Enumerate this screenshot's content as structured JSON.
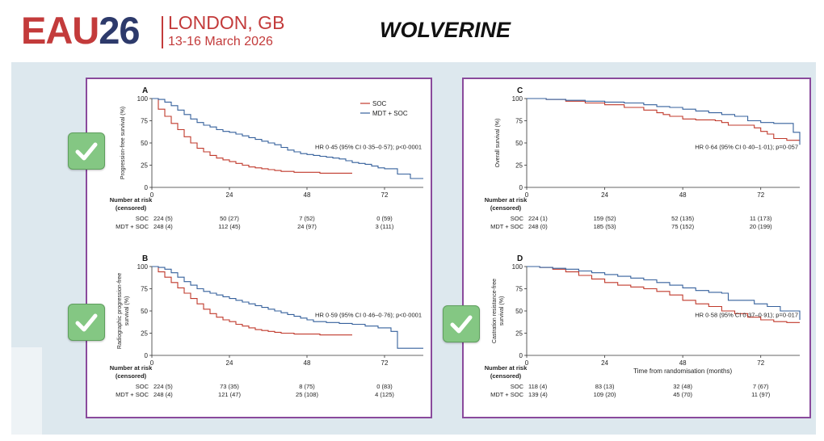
{
  "header": {
    "logo_eau": "EAU",
    "logo_year": "26",
    "city": "LONDON, GB",
    "dates": "13-16 March 2026",
    "title": "WOLVERINE"
  },
  "colors": {
    "soc": "#c0392b",
    "mdt": "#35609c",
    "accent": "#c33b3b",
    "panel_border": "#8a4a9c",
    "check": "#84c783"
  },
  "chart_data": [
    {
      "id": "A",
      "type": "line",
      "panel_label": "A",
      "ylabel": "Progression-free survival (%)",
      "yticks": [
        0,
        25,
        50,
        75,
        100
      ],
      "xticks": [
        0,
        24,
        48,
        72
      ],
      "xlim": [
        0,
        84
      ],
      "ylim": [
        0,
        100
      ],
      "xlabel": "",
      "legend": [
        "SOC",
        "MDT + SOC"
      ],
      "annotation": "HR 0·45 (95% CI 0·35–0·57); p<0·0001",
      "series": [
        {
          "name": "SOC",
          "x": [
            0,
            2,
            4,
            6,
            8,
            10,
            12,
            14,
            16,
            18,
            20,
            22,
            24,
            26,
            28,
            30,
            32,
            34,
            36,
            38,
            40,
            44,
            48,
            52,
            56,
            60,
            62
          ],
          "values": [
            100,
            88,
            80,
            72,
            65,
            57,
            50,
            44,
            40,
            36,
            33,
            31,
            29,
            27,
            25,
            23,
            22,
            21,
            20,
            19,
            18,
            17,
            17,
            16,
            16,
            16,
            16
          ]
        },
        {
          "name": "MDT + SOC",
          "x": [
            0,
            2,
            4,
            6,
            8,
            10,
            12,
            14,
            16,
            18,
            20,
            22,
            24,
            26,
            28,
            30,
            32,
            34,
            36,
            38,
            40,
            42,
            44,
            46,
            48,
            50,
            52,
            54,
            56,
            58,
            60,
            62,
            64,
            66,
            68,
            70,
            72,
            76,
            80,
            84
          ],
          "values": [
            100,
            99,
            96,
            92,
            87,
            82,
            77,
            73,
            70,
            68,
            65,
            63,
            62,
            60,
            58,
            56,
            54,
            52,
            50,
            48,
            45,
            42,
            40,
            38,
            37,
            36,
            35,
            34,
            33,
            32,
            30,
            28,
            27,
            26,
            24,
            22,
            21,
            15,
            10,
            10
          ]
        }
      ],
      "risk_header": [
        "Number at risk",
        "(censored)"
      ],
      "risk_rows": [
        {
          "label": "SOC",
          "values": [
            "224 (5)",
            "50 (27)",
            "7 (52)",
            "0 (59)"
          ]
        },
        {
          "label": "MDT + SOC",
          "values": [
            "248 (4)",
            "112 (45)",
            "24 (97)",
            "3 (111)"
          ]
        }
      ]
    },
    {
      "id": "B",
      "type": "line",
      "panel_label": "B",
      "ylabel": "Radiographic progression-free survival (%)",
      "ylabel_lines": [
        "Radiographic progression-free",
        "survival (%)"
      ],
      "yticks": [
        0,
        25,
        50,
        75,
        100
      ],
      "xticks": [
        0,
        24,
        48,
        72
      ],
      "xlim": [
        0,
        84
      ],
      "ylim": [
        0,
        100
      ],
      "xlabel": "",
      "annotation": "HR 0·59 (95% CI 0·46–0·76); p<0·0001",
      "series": [
        {
          "name": "SOC",
          "x": [
            0,
            2,
            4,
            6,
            8,
            10,
            12,
            14,
            16,
            18,
            20,
            22,
            24,
            26,
            28,
            30,
            32,
            34,
            36,
            38,
            40,
            44,
            48,
            52,
            56,
            60,
            62
          ],
          "values": [
            100,
            94,
            88,
            82,
            76,
            70,
            64,
            58,
            52,
            47,
            43,
            40,
            38,
            35,
            33,
            31,
            29,
            28,
            27,
            26,
            25,
            24,
            24,
            23,
            23,
            23,
            23
          ]
        },
        {
          "name": "MDT + SOC",
          "x": [
            0,
            2,
            4,
            6,
            8,
            10,
            12,
            14,
            16,
            18,
            20,
            22,
            24,
            26,
            28,
            30,
            32,
            34,
            36,
            38,
            40,
            42,
            44,
            46,
            48,
            50,
            54,
            58,
            62,
            66,
            70,
            74,
            76,
            80,
            84
          ],
          "values": [
            100,
            99,
            97,
            93,
            88,
            83,
            79,
            75,
            72,
            70,
            68,
            66,
            64,
            62,
            60,
            58,
            56,
            54,
            52,
            50,
            48,
            46,
            44,
            42,
            40,
            38,
            37,
            36,
            35,
            33,
            31,
            27,
            8,
            8,
            8
          ]
        }
      ],
      "risk_header": [
        "Number at risk",
        "(censored)"
      ],
      "risk_rows": [
        {
          "label": "SOC",
          "values": [
            "224 (5)",
            "73 (35)",
            "8 (75)",
            "0 (83)"
          ]
        },
        {
          "label": "MDT + SOC",
          "values": [
            "248 (4)",
            "121 (47)",
            "25 (108)",
            "4 (125)"
          ]
        }
      ]
    },
    {
      "id": "C",
      "type": "line",
      "panel_label": "C",
      "ylabel": "Overall survival (%)",
      "yticks": [
        0,
        25,
        50,
        75,
        100
      ],
      "xticks": [
        0,
        24,
        48,
        72
      ],
      "xlim": [
        0,
        84
      ],
      "ylim": [
        0,
        100
      ],
      "xlabel": "",
      "annotation": "HR 0·64 (95% CI 0·40–1·01); p=0·057",
      "series": [
        {
          "name": "SOC",
          "x": [
            0,
            6,
            12,
            18,
            24,
            30,
            36,
            40,
            42,
            44,
            48,
            52,
            56,
            58,
            60,
            62,
            66,
            70,
            72,
            74,
            76,
            80,
            84
          ],
          "values": [
            100,
            99,
            97,
            95,
            93,
            90,
            87,
            84,
            82,
            80,
            77,
            76,
            76,
            75,
            73,
            70,
            70,
            67,
            63,
            60,
            55,
            53,
            53
          ]
        },
        {
          "name": "MDT + SOC",
          "x": [
            0,
            6,
            12,
            18,
            24,
            30,
            36,
            40,
            44,
            48,
            52,
            56,
            60,
            64,
            68,
            72,
            76,
            80,
            82,
            84
          ],
          "values": [
            100,
            99,
            98,
            97,
            96,
            95,
            93,
            91,
            90,
            88,
            86,
            84,
            82,
            80,
            75,
            73,
            72,
            72,
            62,
            48
          ]
        }
      ],
      "risk_header": [
        "Number at risk",
        "(censored)"
      ],
      "risk_rows": [
        {
          "label": "SOC",
          "values": [
            "224 (1)",
            "159 (52)",
            "52 (135)",
            "11 (173)"
          ]
        },
        {
          "label": "MDT + SOC",
          "values": [
            "248 (0)",
            "185 (53)",
            "75 (152)",
            "20 (199)"
          ]
        }
      ]
    },
    {
      "id": "D",
      "type": "line",
      "panel_label": "D",
      "ylabel": "Castration resistance-free survival (%)",
      "ylabel_lines": [
        "Castration resistance-free",
        "survival (%)"
      ],
      "yticks": [
        0,
        25,
        50,
        75,
        100
      ],
      "xticks": [
        0,
        24,
        48,
        72
      ],
      "xlim": [
        0,
        84
      ],
      "ylim": [
        0,
        100
      ],
      "xlabel": "Time from randomisation (months)",
      "annotation": "HR 0·58 (95% CI 0·37–0·91); p=0·017",
      "series": [
        {
          "name": "SOC",
          "x": [
            0,
            4,
            8,
            12,
            16,
            20,
            24,
            28,
            32,
            36,
            40,
            44,
            48,
            52,
            56,
            60,
            64,
            68,
            72,
            76,
            80,
            84
          ],
          "values": [
            100,
            99,
            97,
            94,
            90,
            86,
            82,
            79,
            77,
            75,
            72,
            68,
            62,
            58,
            55,
            50,
            47,
            43,
            40,
            38,
            37,
            37
          ]
        },
        {
          "name": "MDT + SOC",
          "x": [
            0,
            4,
            8,
            12,
            16,
            20,
            24,
            28,
            32,
            36,
            40,
            44,
            48,
            52,
            56,
            60,
            62,
            66,
            70,
            74,
            78,
            82,
            84
          ],
          "values": [
            100,
            99,
            98,
            97,
            95,
            93,
            91,
            89,
            87,
            85,
            82,
            79,
            76,
            73,
            71,
            70,
            62,
            62,
            58,
            55,
            50,
            50,
            40
          ]
        }
      ],
      "risk_header": [
        "Number at risk",
        "(censored)"
      ],
      "risk_rows": [
        {
          "label": "SOC",
          "values": [
            "118 (4)",
            "83 (13)",
            "32 (48)",
            "7 (67)"
          ]
        },
        {
          "label": "MDT + SOC",
          "values": [
            "139 (4)",
            "109 (20)",
            "45 (70)",
            "11 (97)"
          ]
        }
      ]
    }
  ]
}
